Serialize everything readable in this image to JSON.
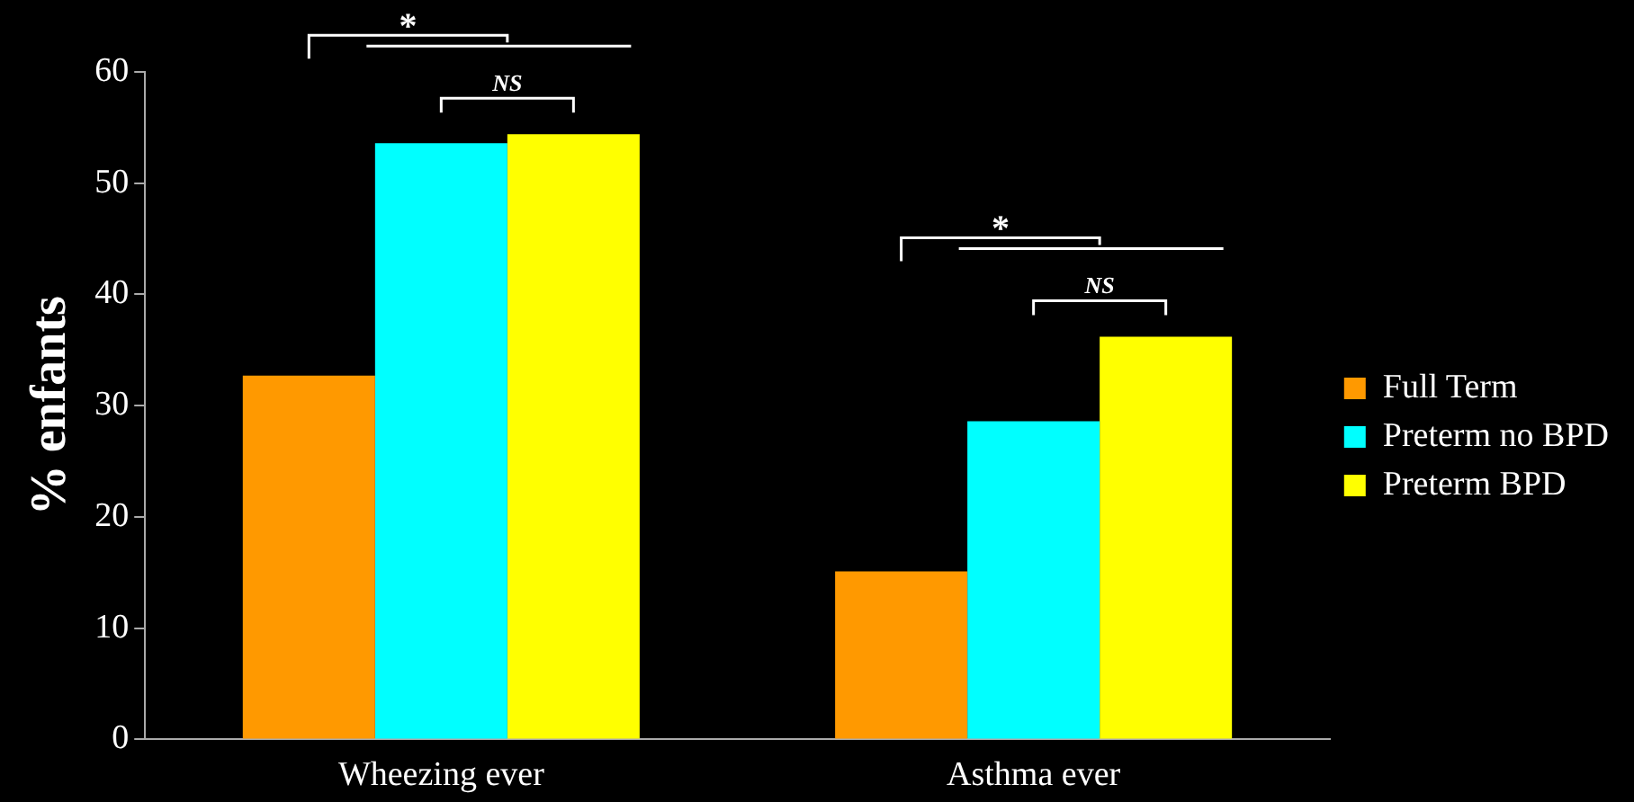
{
  "chart_data": {
    "type": "bar",
    "ylabel": "% enfants",
    "categories": [
      "Wheezing ever",
      "Asthma ever"
    ],
    "series": [
      {
        "name": "Full Term",
        "color": "#ff9900",
        "values": [
          32.7,
          15.1
        ]
      },
      {
        "name": "Preterm no BPD",
        "color": "#00ffff",
        "values": [
          53.6,
          28.6
        ]
      },
      {
        "name": "Preterm BPD",
        "color": "#ffff00",
        "values": [
          54.4,
          36.2
        ]
      }
    ],
    "ylim": [
      0,
      60
    ],
    "yticks": [
      0,
      10,
      20,
      30,
      40,
      50,
      60
    ],
    "grid": false,
    "legend": "right",
    "annotations": [
      "*",
      "NS",
      "*",
      "NS"
    ]
  }
}
